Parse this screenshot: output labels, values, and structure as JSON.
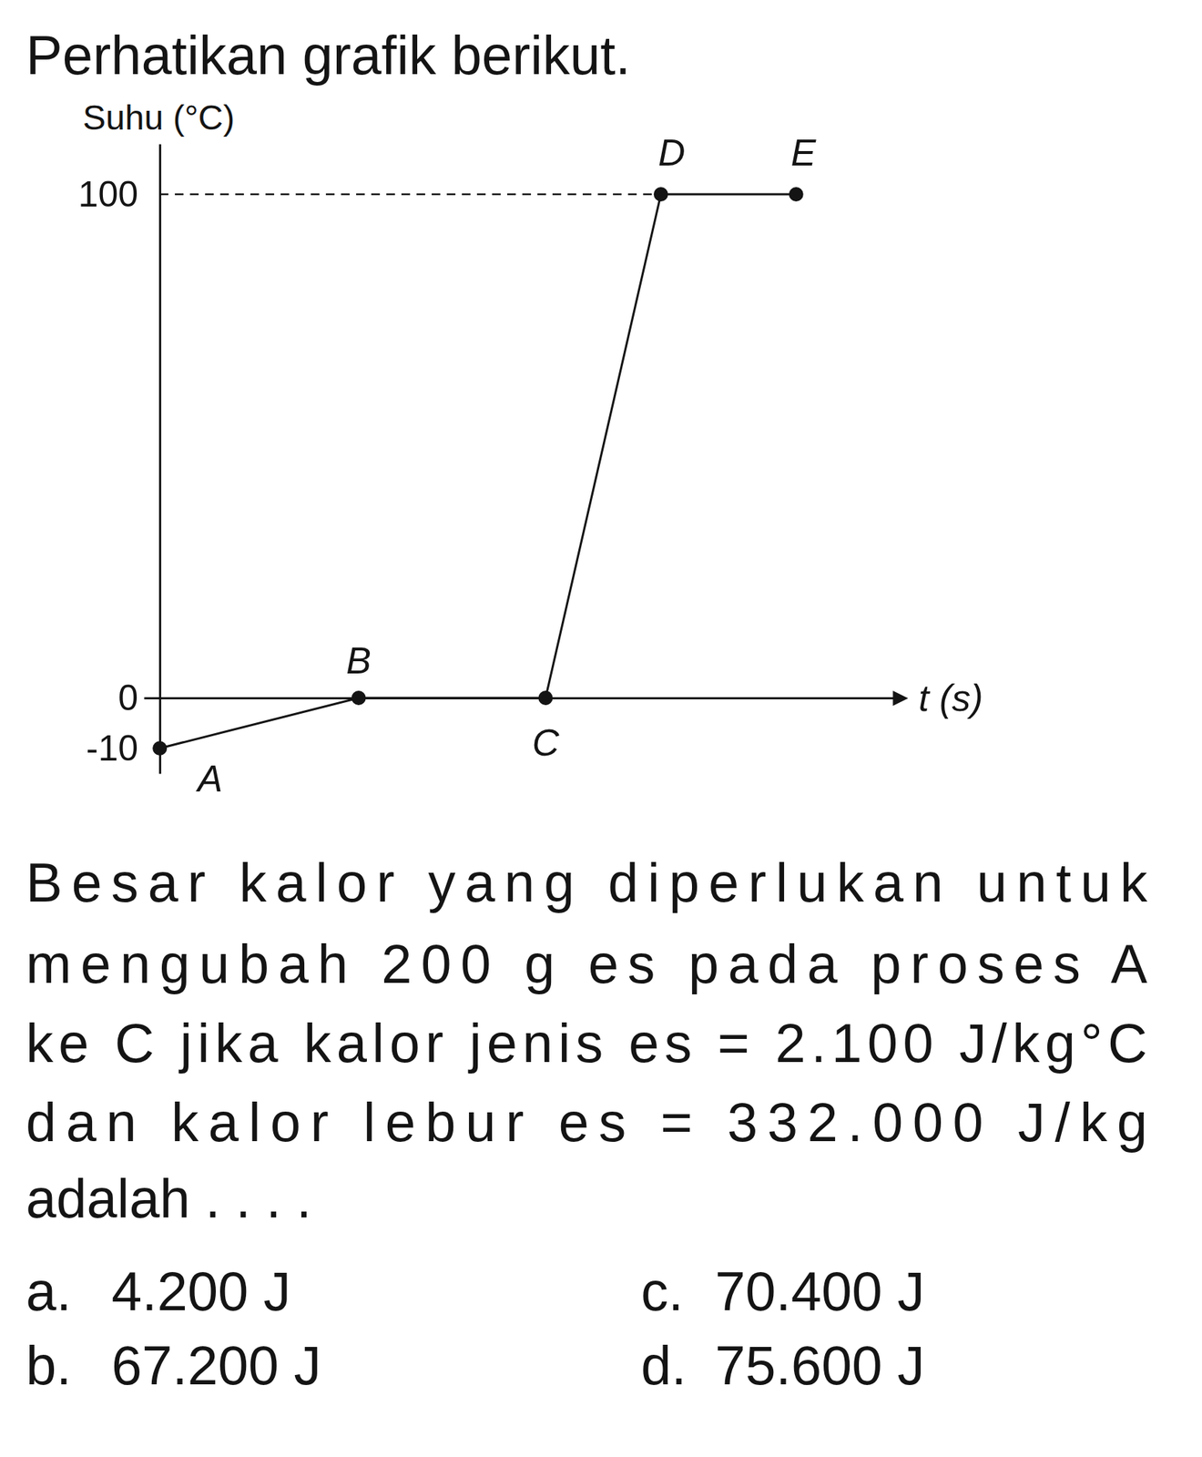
{
  "header": {
    "title": "Perhatikan grafik berikut."
  },
  "chart_data": {
    "type": "line",
    "x_label": "t (s)",
    "y_label": "Suhu (°C)",
    "x": [
      0,
      5,
      9.7,
      12.6,
      16
    ],
    "values": [
      -10,
      0,
      0,
      100,
      100
    ],
    "point_labels": [
      "A",
      "B",
      "C",
      "D",
      "E"
    ],
    "xlim": [
      -0.4,
      18.5
    ],
    "xticks": [],
    "ylim": [
      -15,
      110
    ],
    "yticks": [
      -10,
      0,
      100
    ],
    "tick_labels": "y",
    "marker": "circle",
    "color": "#141414",
    "grid": false
  },
  "question": {
    "lines": [
      "Besar kalor yang diperlukan untuk",
      "mengubah 200 g es pada proses A",
      "ke C jika kalor jenis es = 2.100 J/kg°C",
      "dan kalor lebur es = 332.000 J/kg",
      "adalah . . . ."
    ],
    "options": [
      {
        "letter": "a.",
        "text": "4.200 J"
      },
      {
        "letter": "b.",
        "text": "67.200 J"
      },
      {
        "letter": "c.",
        "text": "70.400 J"
      },
      {
        "letter": "d.",
        "text": "75.600 J"
      }
    ]
  }
}
